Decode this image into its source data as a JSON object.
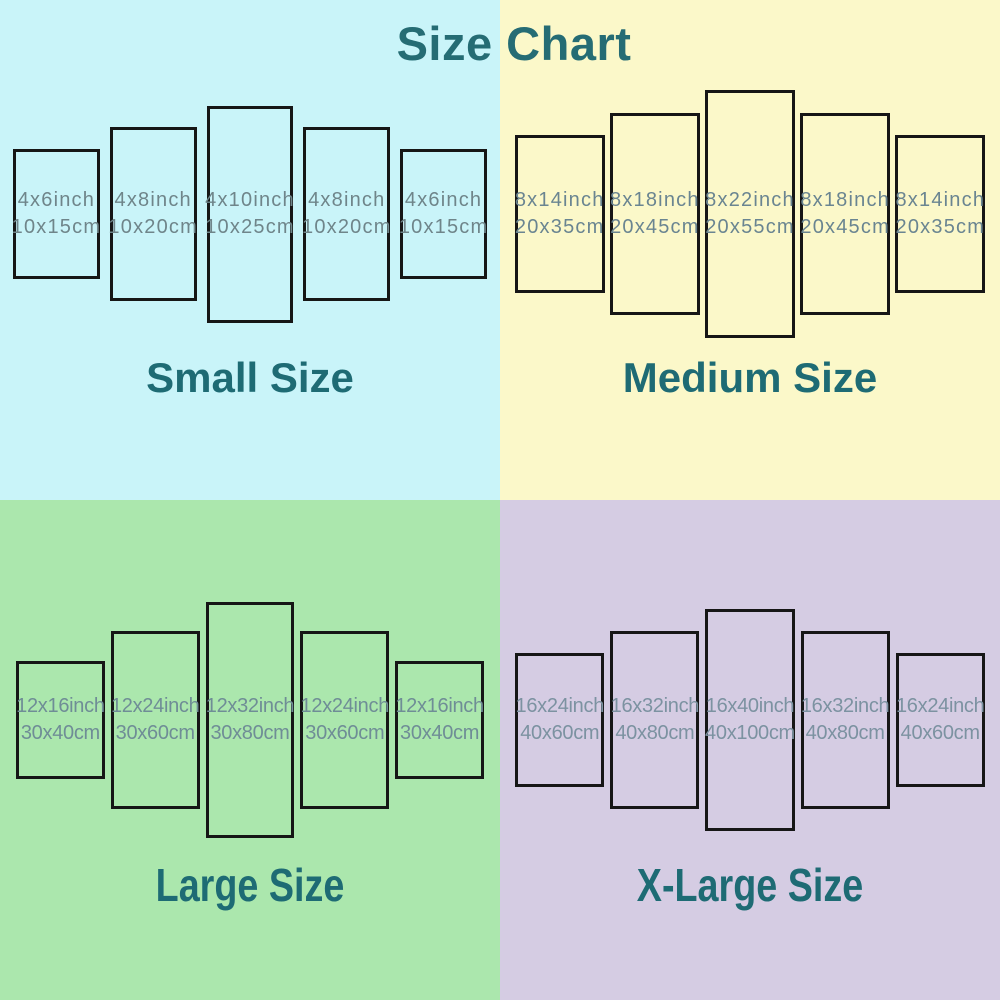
{
  "title": "Size Chart",
  "theme": {
    "title_color": "#256c74",
    "label_color": "#1e6b74",
    "panel_border_color": "#161616"
  },
  "quadrants": [
    {
      "id": "small",
      "label": "Small Size",
      "bg": "#c9f4f9",
      "text_color": "#6f858a",
      "panels": [
        {
          "inch": "4x6inch",
          "cm": "10x15cm",
          "w_in": 4,
          "h_in": 6
        },
        {
          "inch": "4x8inch",
          "cm": "10x20cm",
          "w_in": 4,
          "h_in": 8
        },
        {
          "inch": "4x10inch",
          "cm": "10x25cm",
          "w_in": 4,
          "h_in": 10
        },
        {
          "inch": "4x8inch",
          "cm": "10x20cm",
          "w_in": 4,
          "h_in": 8
        },
        {
          "inch": "4x6inch",
          "cm": "10x15cm",
          "w_in": 4,
          "h_in": 6
        }
      ]
    },
    {
      "id": "medium",
      "label": "Medium Size",
      "bg": "#fbf8c9",
      "text_color": "#6a8591",
      "panels": [
        {
          "inch": "8x14inch",
          "cm": "20x35cm",
          "w_in": 8,
          "h_in": 14
        },
        {
          "inch": "8x18inch",
          "cm": "20x45cm",
          "w_in": 8,
          "h_in": 18
        },
        {
          "inch": "8x22inch",
          "cm": "20x55cm",
          "w_in": 8,
          "h_in": 22
        },
        {
          "inch": "8x18inch",
          "cm": "20x45cm",
          "w_in": 8,
          "h_in": 18
        },
        {
          "inch": "8x14inch",
          "cm": "20x35cm",
          "w_in": 8,
          "h_in": 14
        }
      ]
    },
    {
      "id": "large",
      "label": "Large Size",
      "bg": "#abe7ad",
      "text_color": "#6f8d96",
      "panels": [
        {
          "inch": "12x16inch",
          "cm": "30x40cm",
          "w_in": 12,
          "h_in": 16
        },
        {
          "inch": "12x24inch",
          "cm": "30x60cm",
          "w_in": 12,
          "h_in": 24
        },
        {
          "inch": "12x32inch",
          "cm": "30x80cm",
          "w_in": 12,
          "h_in": 32
        },
        {
          "inch": "12x24inch",
          "cm": "30x60cm",
          "w_in": 12,
          "h_in": 24
        },
        {
          "inch": "12x16inch",
          "cm": "30x40cm",
          "w_in": 12,
          "h_in": 16
        }
      ]
    },
    {
      "id": "xlarge",
      "label": "X-Large Size",
      "bg": "#d5cce3",
      "text_color": "#7c92a1",
      "panels": [
        {
          "inch": "16x24inch",
          "cm": "40x60cm",
          "w_in": 16,
          "h_in": 24
        },
        {
          "inch": "16x32inch",
          "cm": "40x80cm",
          "w_in": 16,
          "h_in": 32
        },
        {
          "inch": "16x40inch",
          "cm": "40x100cm",
          "w_in": 16,
          "h_in": 40
        },
        {
          "inch": "16x32inch",
          "cm": "40x80cm",
          "w_in": 16,
          "h_in": 32
        },
        {
          "inch": "16x24inch",
          "cm": "40x60cm",
          "w_in": 16,
          "h_in": 24
        }
      ]
    }
  ]
}
